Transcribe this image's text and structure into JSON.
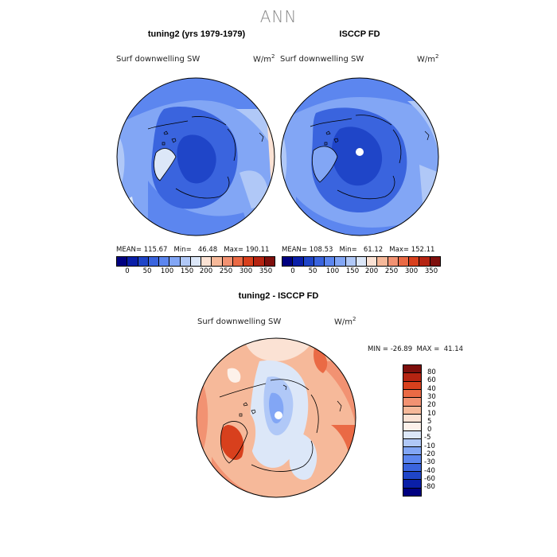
{
  "figure": {
    "title": "ANN"
  },
  "panels": [
    {
      "title": "tuning2 (yrs 1979-1979)",
      "variable": "Surf downwelling SW",
      "units_base": "W/m",
      "units_exp": "2",
      "stats": "MEAN= 115.67   Min=   46.48   Max= 190.11"
    },
    {
      "title": "ISCCP FD",
      "variable": "Surf downwelling SW",
      "units_base": "W/m",
      "units_exp": "2",
      "stats": "MEAN= 108.53   Min=   61.12   Max= 152.11"
    },
    {
      "title": "tuning2 - ISCCP FD",
      "variable": "Surf downwelling SW",
      "units_base": "W/m",
      "units_exp": "2",
      "stats": "MIN = -26.89  MAX =  41.14"
    }
  ],
  "colorbar_abs": {
    "colors": [
      "#000080",
      "#0a1fa8",
      "#1f45c8",
      "#3a64de",
      "#5c86ef",
      "#82a6f5",
      "#b0c8f7",
      "#dce7f8",
      "#fbe2d4",
      "#f6b99a",
      "#f29272",
      "#ea6a45",
      "#d8401d",
      "#b52412",
      "#7e0f0c"
    ],
    "ticks": [
      "0",
      "50",
      "100",
      "150",
      "200",
      "250",
      "300",
      "350"
    ]
  },
  "colorbar_diff": {
    "colors": [
      "#7e0f0c",
      "#b52412",
      "#d8401d",
      "#ea6a45",
      "#f29272",
      "#f6b99a",
      "#fbe2d4",
      "#fdf1ea",
      "#dce7f8",
      "#b0c8f7",
      "#82a6f5",
      "#5c86ef",
      "#3a64de",
      "#1f45c8",
      "#0a1fa8",
      "#000080"
    ],
    "ticks": [
      "80",
      "60",
      "40",
      "30",
      "20",
      "10",
      "5",
      "0",
      "-5",
      "-10",
      "-20",
      "-30",
      "-40",
      "-60",
      "-80"
    ]
  }
}
